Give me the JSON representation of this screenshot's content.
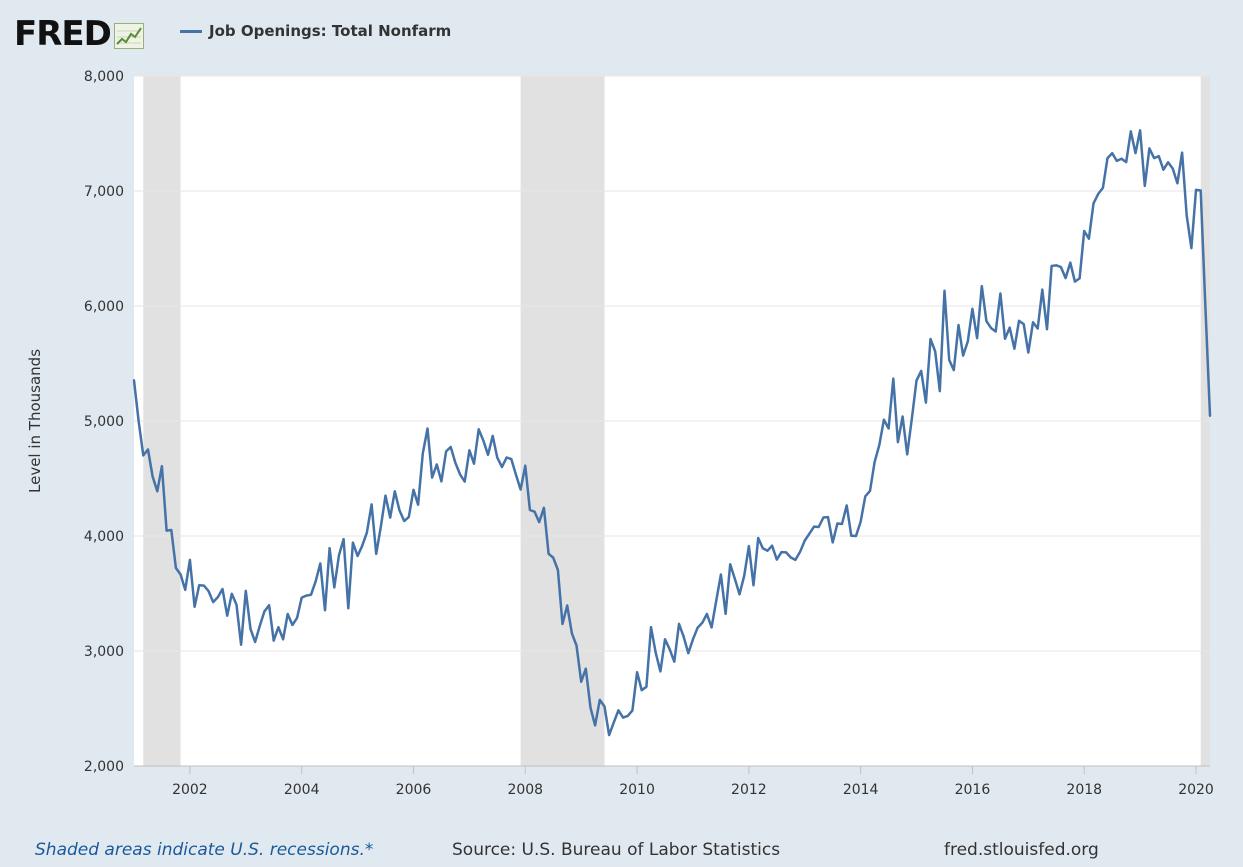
{
  "header": {
    "logo_text": "FRED",
    "logo_icon": "trend-line-icon",
    "series_title": "Job Openings: Total Nonfarm"
  },
  "footer": {
    "recession_note": "Shaded areas indicate U.S. recessions.*",
    "source": "Source: U.S. Bureau of Labor Statistics",
    "url": "fred.stlouisfed.org"
  },
  "colors": {
    "background": "#e1e9f0",
    "series": "#4572a7",
    "recession": "#e1e1e1",
    "grid": "#e6e6e6"
  },
  "chart_data": {
    "type": "line",
    "ylabel": "Level in Thousands",
    "ylim": [
      2000,
      8000
    ],
    "yticks": [
      2000,
      3000,
      4000,
      5000,
      6000,
      7000,
      8000
    ],
    "ytick_labels": [
      "2,000",
      "3,000",
      "4,000",
      "5,000",
      "6,000",
      "7,000",
      "8,000"
    ],
    "xlim": [
      "2001-01",
      "2020-04"
    ],
    "xticks": [
      2002,
      2004,
      2006,
      2008,
      2010,
      2012,
      2014,
      2016,
      2018,
      2020
    ],
    "grid": true,
    "legend_position": "top-left",
    "recessions": [
      [
        "2001-03",
        "2001-11"
      ],
      [
        "2007-12",
        "2009-06"
      ],
      [
        "2020-02",
        "2020-04"
      ]
    ],
    "x_start": "2001-01",
    "frequency": "monthly",
    "values": [
      5353,
      4993,
      4701,
      4752,
      4517,
      4389,
      4607,
      4047,
      4052,
      3722,
      3665,
      3532,
      3792,
      3384,
      3572,
      3569,
      3522,
      3425,
      3468,
      3539,
      3307,
      3497,
      3402,
      3055,
      3523,
      3192,
      3078,
      3218,
      3344,
      3398,
      3090,
      3207,
      3102,
      3322,
      3226,
      3286,
      3464,
      3482,
      3489,
      3607,
      3761,
      3354,
      3895,
      3552,
      3834,
      3973,
      3371,
      3943,
      3826,
      3915,
      4031,
      4275,
      3844,
      4084,
      4351,
      4160,
      4389,
      4223,
      4130,
      4164,
      4402,
      4272,
      4718,
      4935,
      4508,
      4623,
      4475,
      4736,
      4774,
      4636,
      4535,
      4473,
      4745,
      4629,
      4928,
      4829,
      4706,
      4870,
      4681,
      4600,
      4683,
      4669,
      4531,
      4404,
      4611,
      4226,
      4211,
      4121,
      4245,
      3845,
      3812,
      3704,
      3235,
      3396,
      3153,
      3048,
      2733,
      2846,
      2507,
      2353,
      2575,
      2517,
      2269,
      2379,
      2484,
      2421,
      2436,
      2483,
      2816,
      2659,
      2689,
      3208,
      2985,
      2823,
      3102,
      3015,
      2907,
      3236,
      3126,
      2981,
      3103,
      3203,
      3245,
      3322,
      3205,
      3440,
      3665,
      3323,
      3755,
      3626,
      3493,
      3654,
      3912,
      3571,
      3983,
      3893,
      3872,
      3916,
      3795,
      3860,
      3857,
      3813,
      3792,
      3863,
      3961,
      4020,
      4082,
      4078,
      4161,
      4164,
      3944,
      4109,
      4104,
      4266,
      4002,
      4000,
      4123,
      4345,
      4392,
      4643,
      4790,
      5011,
      4935,
      5369,
      4816,
      5039,
      4710,
      5025,
      5351,
      5436,
      5160,
      5713,
      5604,
      5260,
      6133,
      5531,
      5443,
      5835,
      5569,
      5692,
      5976,
      5720,
      6173,
      5869,
      5808,
      5778,
      6109,
      5715,
      5812,
      5629,
      5871,
      5843,
      5596,
      5858,
      5804,
      6143,
      5798,
      6348,
      6354,
      6339,
      6243,
      6377,
      6212,
      6240,
      6652,
      6585,
      6892,
      6975,
      7027,
      7286,
      7329,
      7262,
      7281,
      7251,
      7518,
      7330,
      7527,
      7044,
      7370,
      7286,
      7303,
      7185,
      7250,
      7196,
      7067,
      7334,
      6787,
      6503,
      7010,
      7004,
      6011,
      5046
    ]
  }
}
